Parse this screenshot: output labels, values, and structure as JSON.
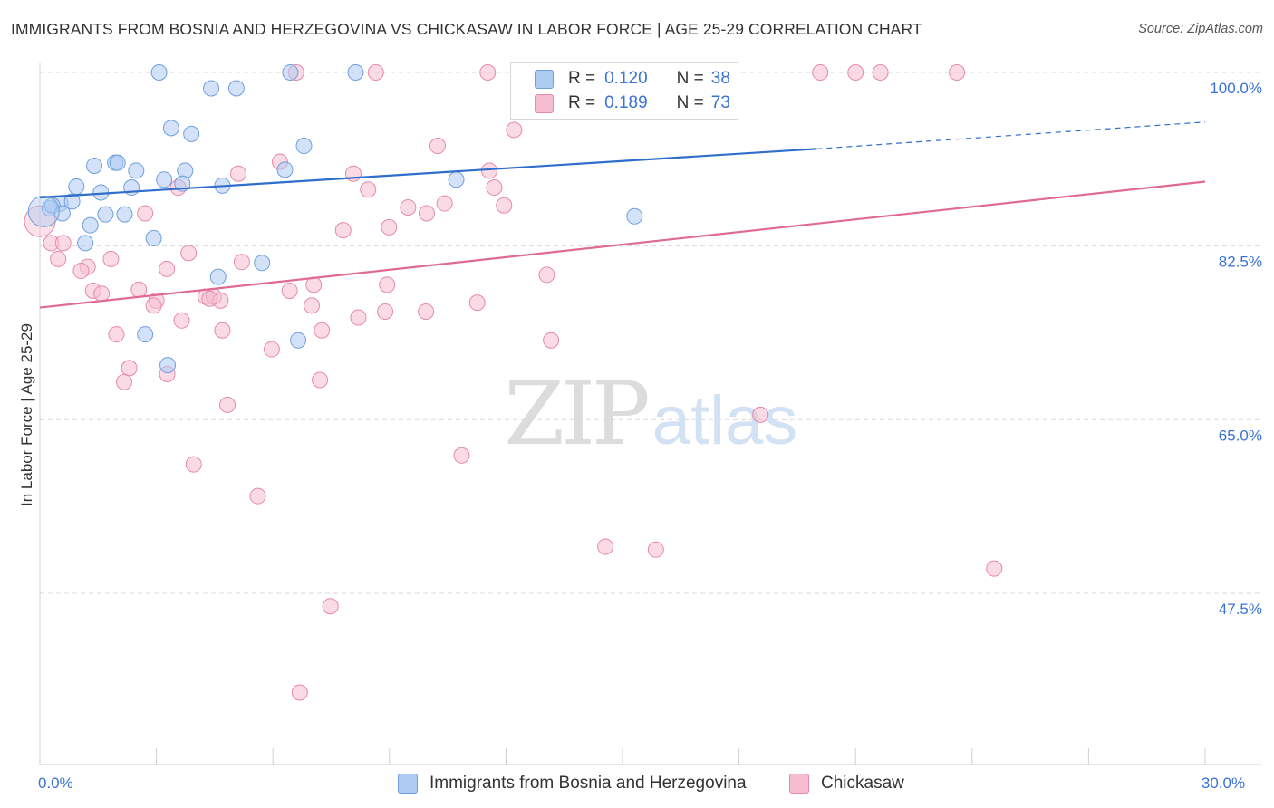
{
  "header": {
    "title": "IMMIGRANTS FROM BOSNIA AND HERZEGOVINA VS CHICKASAW IN LABOR FORCE | AGE 25-29 CORRELATION CHART",
    "source": "Source: ZipAtlas.com"
  },
  "legend": {
    "rows": [
      {
        "r_label": "R =",
        "r_value": "0.120",
        "n_label": "N =",
        "n_value": "38"
      },
      {
        "r_label": "R =",
        "r_value": "0.189",
        "n_label": "N =",
        "n_value": "73"
      }
    ],
    "bottom": [
      "Immigrants from Bosnia and Herzegovina",
      "Chickasaw"
    ]
  },
  "watermark": {
    "zip": "ZIP",
    "atlas": "atlas"
  },
  "colors": {
    "blue_fill": "#aecbf2",
    "blue_stroke": "#6f9fdd",
    "blue_line": "#2f6ecb",
    "pink_fill": "#f6bdcf",
    "pink_stroke": "#e68aa8",
    "pink_line": "#e06a95",
    "tick_label": "#3a73d4",
    "grid": "#d9d9d9"
  },
  "chart_data": {
    "type": "scatter",
    "xlabel": "",
    "ylabel": "In Labor Force | Age 25-29",
    "xlim": [
      0,
      30
    ],
    "ylim": [
      32.0,
      102.0
    ],
    "x_tick_labels": [
      {
        "value": 0,
        "label": "0.0%"
      },
      {
        "value": 30,
        "label": "30.0%"
      }
    ],
    "y_tick_labels": [
      {
        "value": 100.0,
        "label": "100.0%"
      },
      {
        "value": 82.5,
        "label": "82.5%"
      },
      {
        "value": 65.0,
        "label": "65.0%"
      },
      {
        "value": 47.5,
        "label": "47.5%"
      }
    ],
    "grid": true,
    "series": [
      {
        "name": "Immigrants from Bosnia and Herzegovina",
        "color": "blue",
        "points": [
          [
            3.07,
            100.0
          ],
          [
            6.45,
            100.0
          ],
          [
            8.13,
            100.0
          ],
          [
            4.41,
            98.4
          ],
          [
            5.06,
            98.4
          ],
          [
            3.38,
            94.4
          ],
          [
            3.9,
            93.8
          ],
          [
            6.8,
            92.6
          ],
          [
            1.94,
            90.9
          ],
          [
            2.0,
            90.9
          ],
          [
            1.4,
            90.6
          ],
          [
            2.48,
            90.1
          ],
          [
            3.74,
            90.1
          ],
          [
            6.31,
            90.2
          ],
          [
            3.2,
            89.2
          ],
          [
            10.72,
            89.2
          ],
          [
            3.67,
            88.8
          ],
          [
            4.7,
            88.6
          ],
          [
            0.94,
            88.5
          ],
          [
            2.36,
            88.4
          ],
          [
            1.57,
            87.9
          ],
          [
            0.53,
            86.8
          ],
          [
            0.83,
            87.0
          ],
          [
            0.25,
            86.3
          ],
          [
            0.32,
            86.6
          ],
          [
            0.58,
            85.8
          ],
          [
            1.69,
            85.7
          ],
          [
            2.18,
            85.7
          ],
          [
            15.31,
            85.5
          ],
          [
            1.3,
            84.6
          ],
          [
            2.93,
            83.3
          ],
          [
            1.17,
            82.8
          ],
          [
            5.72,
            80.8
          ],
          [
            4.59,
            79.4
          ],
          [
            2.71,
            73.6
          ],
          [
            6.65,
            73.0
          ],
          [
            3.29,
            70.5
          ],
          [
            0.1,
            86.0
          ]
        ]
      },
      {
        "name": "Chickasaw",
        "color": "pink",
        "points": [
          [
            6.6,
            100.0
          ],
          [
            8.65,
            100.0
          ],
          [
            11.53,
            100.0
          ],
          [
            15.37,
            100.0
          ],
          [
            16.9,
            100.0
          ],
          [
            20.09,
            100.0
          ],
          [
            21.0,
            100.0
          ],
          [
            21.64,
            100.0
          ],
          [
            23.61,
            100.0
          ],
          [
            12.21,
            94.2
          ],
          [
            10.24,
            92.6
          ],
          [
            6.18,
            91.0
          ],
          [
            11.57,
            90.1
          ],
          [
            5.11,
            89.8
          ],
          [
            8.07,
            89.8
          ],
          [
            3.56,
            88.4
          ],
          [
            8.45,
            88.2
          ],
          [
            11.7,
            88.4
          ],
          [
            10.42,
            86.8
          ],
          [
            11.95,
            86.6
          ],
          [
            9.48,
            86.4
          ],
          [
            9.96,
            85.8
          ],
          [
            2.71,
            85.8
          ],
          [
            8.99,
            84.4
          ],
          [
            7.81,
            84.1
          ],
          [
            0.29,
            82.8
          ],
          [
            0.6,
            82.8
          ],
          [
            3.83,
            81.8
          ],
          [
            0.47,
            81.2
          ],
          [
            1.83,
            81.2
          ],
          [
            5.2,
            80.9
          ],
          [
            1.23,
            80.4
          ],
          [
            1.06,
            80.0
          ],
          [
            13.05,
            79.6
          ],
          [
            2.55,
            78.1
          ],
          [
            6.43,
            78.0
          ],
          [
            7.05,
            78.6
          ],
          [
            8.94,
            78.6
          ],
          [
            1.37,
            78.0
          ],
          [
            1.59,
            77.7
          ],
          [
            4.27,
            77.4
          ],
          [
            4.48,
            77.4
          ],
          [
            4.65,
            77.0
          ],
          [
            3.0,
            77.0
          ],
          [
            2.93,
            76.5
          ],
          [
            7.0,
            76.5
          ],
          [
            11.26,
            76.8
          ],
          [
            8.89,
            75.9
          ],
          [
            9.94,
            75.9
          ],
          [
            8.2,
            75.3
          ],
          [
            3.65,
            75.0
          ],
          [
            7.26,
            74.0
          ],
          [
            4.7,
            74.0
          ],
          [
            1.97,
            73.6
          ],
          [
            13.16,
            73.0
          ],
          [
            5.97,
            72.1
          ],
          [
            2.3,
            70.2
          ],
          [
            3.28,
            69.6
          ],
          [
            2.17,
            68.8
          ],
          [
            7.21,
            69.0
          ],
          [
            4.83,
            66.5
          ],
          [
            18.55,
            65.5
          ],
          [
            10.86,
            61.4
          ],
          [
            3.96,
            60.5
          ],
          [
            5.61,
            57.3
          ],
          [
            14.56,
            52.2
          ],
          [
            15.86,
            51.9
          ],
          [
            24.57,
            50.0
          ],
          [
            7.48,
            46.2
          ],
          [
            6.69,
            37.5
          ],
          [
            4.37,
            77.2
          ],
          [
            3.27,
            80.2
          ],
          [
            0.0,
            85.0
          ]
        ]
      }
    ],
    "trend_lines": [
      {
        "series": "Immigrants from Bosnia and Herzegovina",
        "x_start": 0,
        "y_start": 87.4,
        "x_end": 20.0,
        "y_end": 92.3,
        "dashed_to_x": 30,
        "dashed_to_y": 95.0
      },
      {
        "series": "Chickasaw",
        "x_start": 0,
        "y_start": 76.3,
        "x_end": 30,
        "y_end": 89.0
      }
    ]
  }
}
